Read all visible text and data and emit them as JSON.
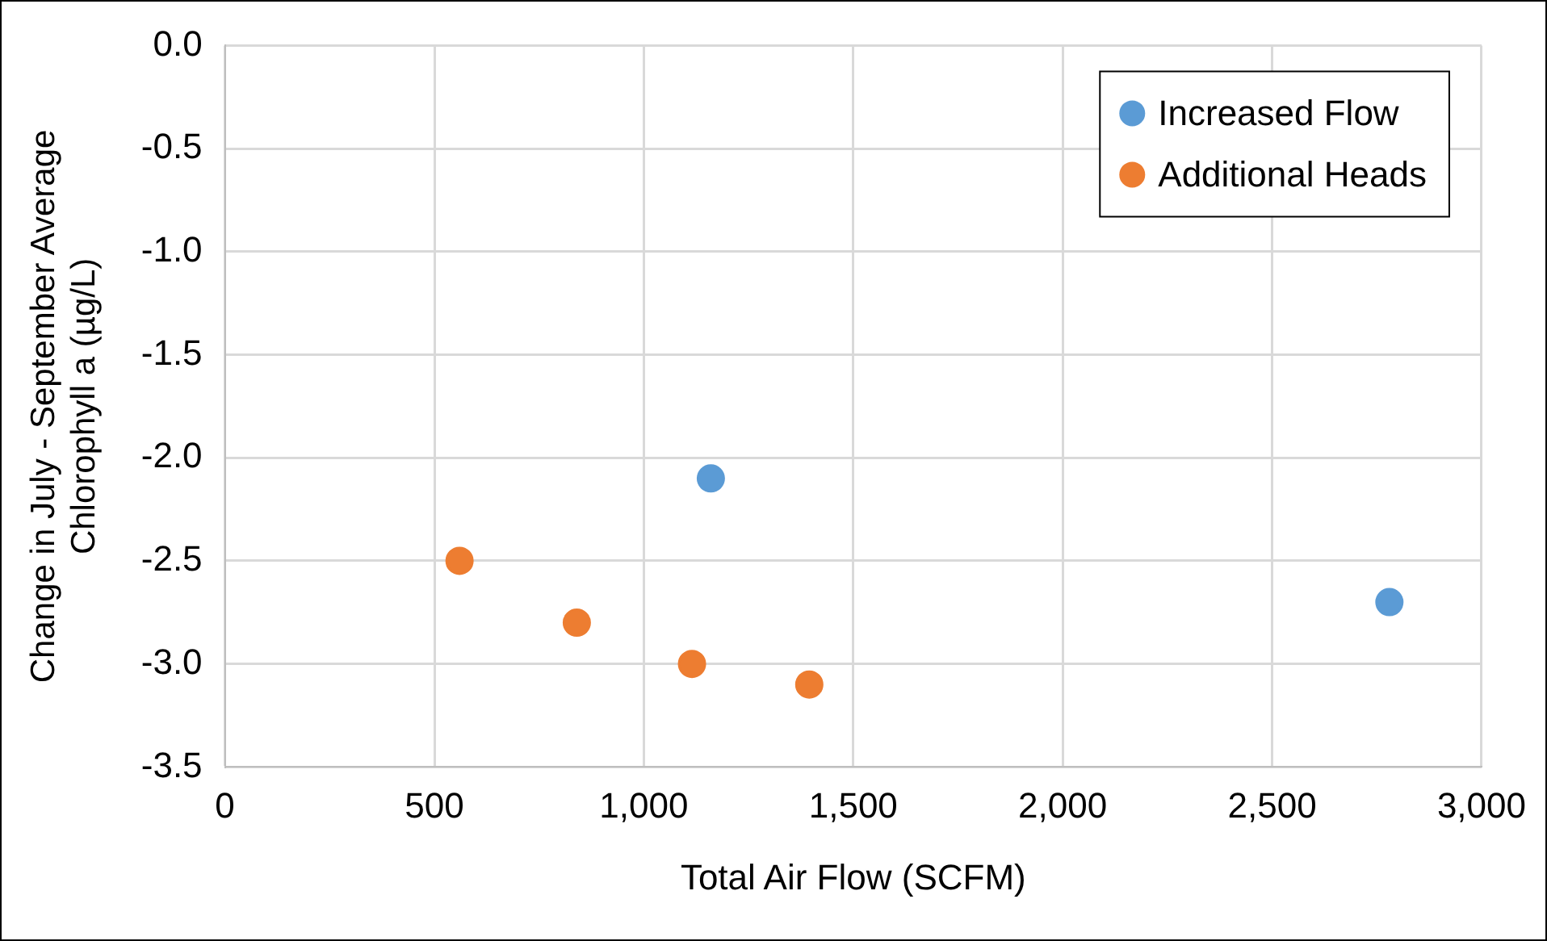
{
  "chart_data": {
    "type": "scatter",
    "xlabel": "Total Air Flow (SCFM)",
    "ylabel": "Change in July - September Average Chlorophyll a (µg/L)",
    "series": [
      {
        "name": "Increased Flow",
        "color": "#5b9bd5",
        "x": [
          1160,
          2780
        ],
        "values": [
          -2.1,
          -2.7
        ]
      },
      {
        "name": "Additional Heads",
        "color": "#ed7d31",
        "x": [
          560,
          840,
          1115,
          1395
        ],
        "values": [
          -2.5,
          -2.8,
          -3.0,
          -3.1
        ]
      }
    ],
    "xlim": [
      0,
      3000
    ],
    "xticks": [
      {
        "value": 0,
        "label": "0"
      },
      {
        "value": 500,
        "label": "500"
      },
      {
        "value": 1000,
        "label": "1,000"
      },
      {
        "value": 1500,
        "label": "1,500"
      },
      {
        "value": 2000,
        "label": "2,000"
      },
      {
        "value": 2500,
        "label": "2,500"
      },
      {
        "value": 3000,
        "label": "3,000"
      }
    ],
    "ylim": [
      -3.5,
      0
    ],
    "yticks": [
      {
        "value": 0,
        "label": "0.0"
      },
      {
        "value": -0.5,
        "label": "-0.5"
      },
      {
        "value": -1,
        "label": "-1.0"
      },
      {
        "value": -1.5,
        "label": "-1.5"
      },
      {
        "value": -2,
        "label": "-2.0"
      },
      {
        "value": -2.5,
        "label": "-2.5"
      },
      {
        "value": -3,
        "label": "-3.0"
      },
      {
        "value": -3.5,
        "label": "-3.5"
      }
    ],
    "grid": true,
    "legend": "top right",
    "marker": "circle"
  }
}
